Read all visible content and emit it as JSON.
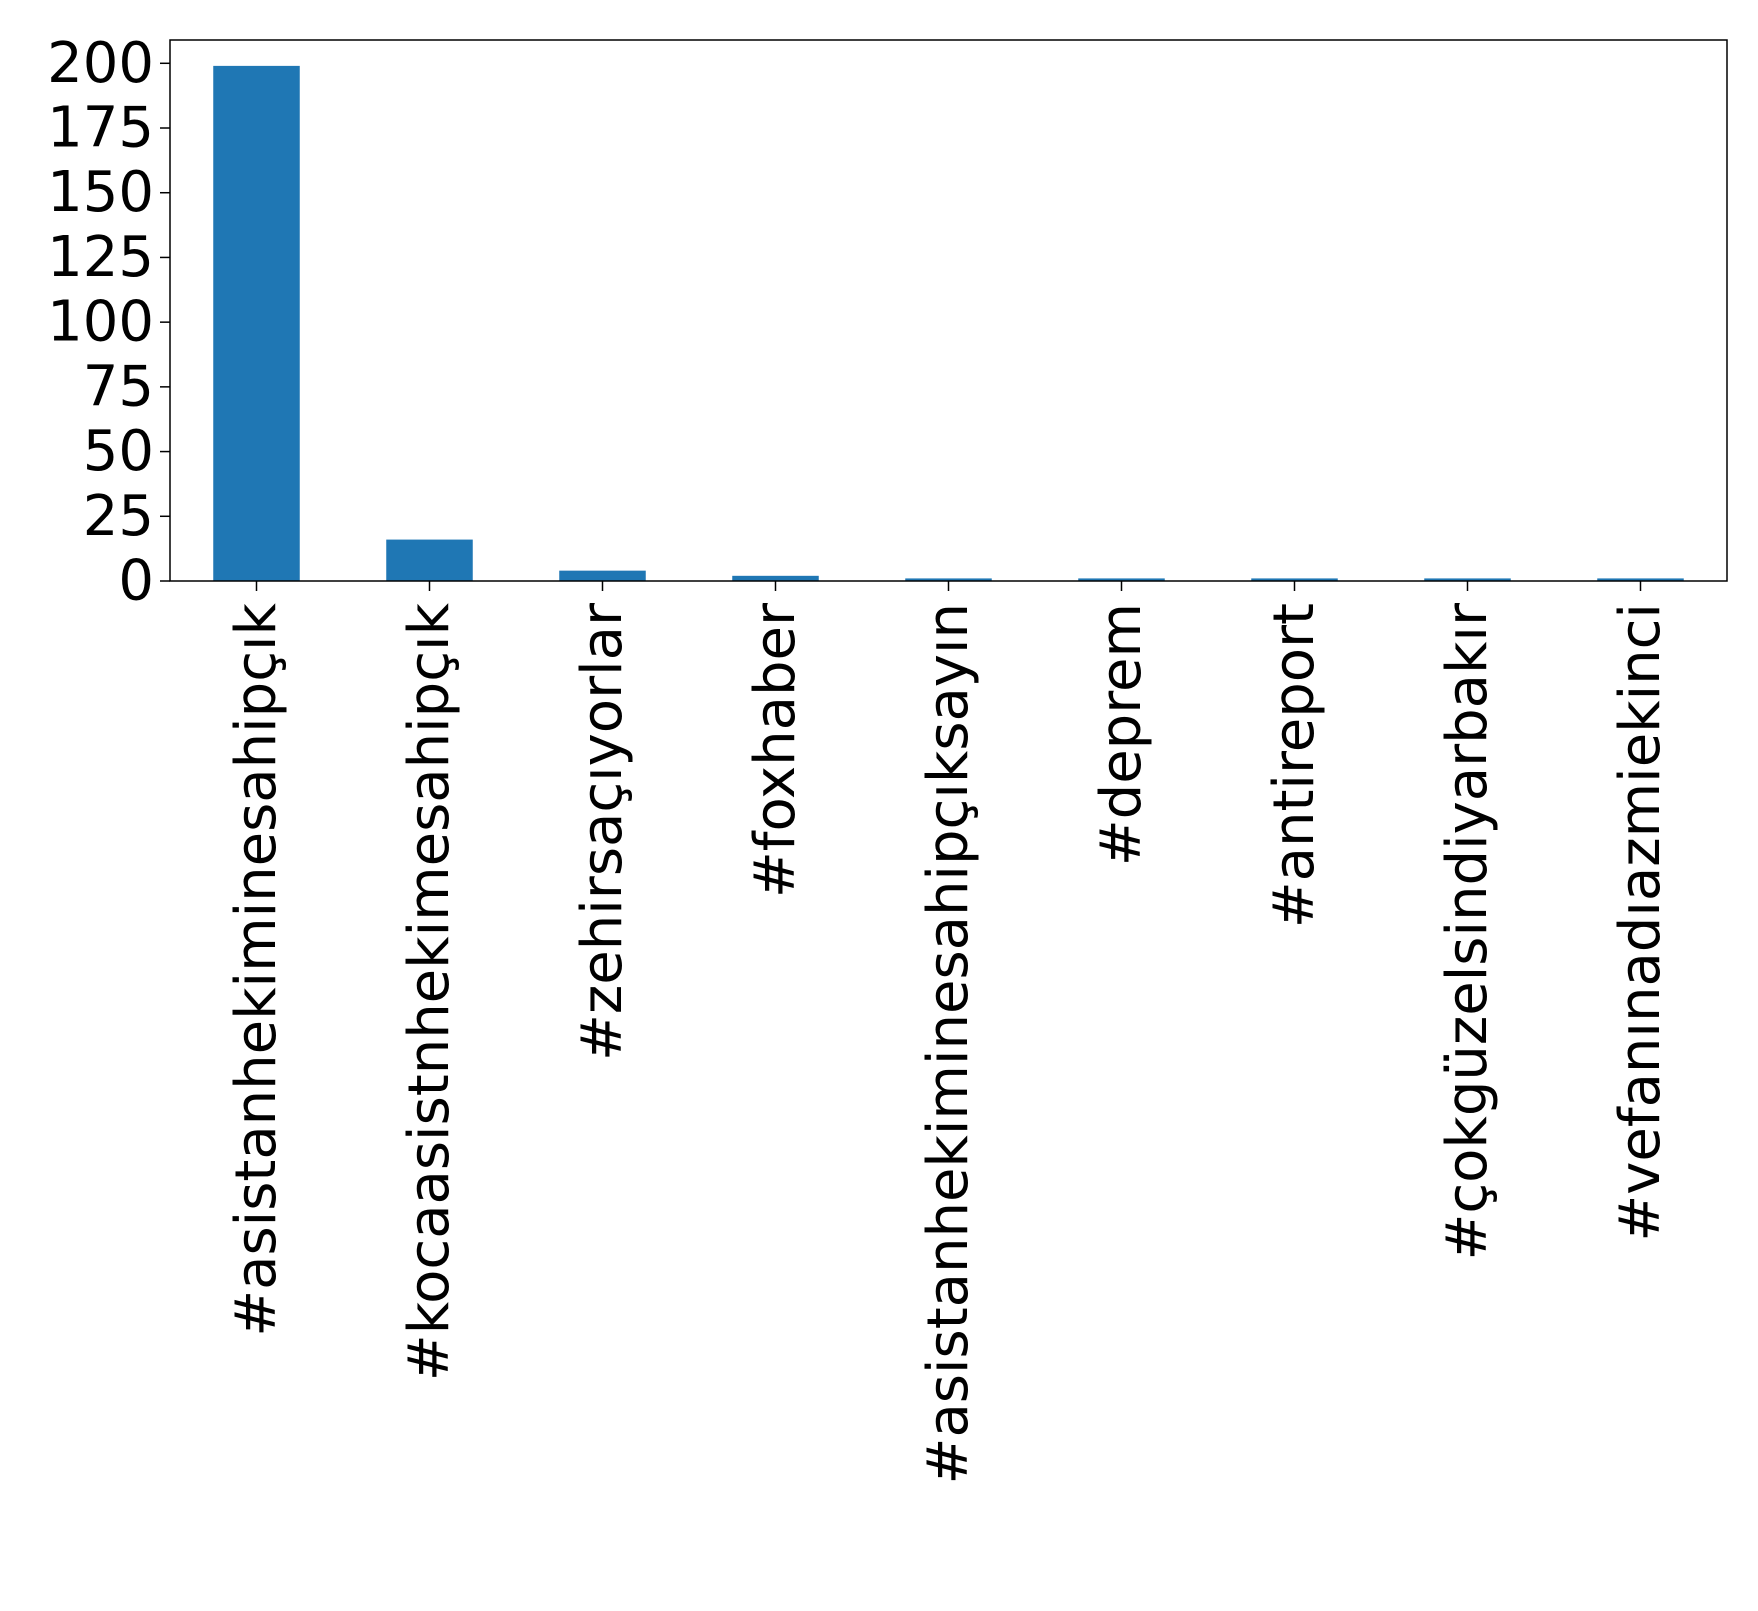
{
  "chart_data": {
    "type": "bar",
    "categories": [
      "#asistanhekiminesahipçık",
      "#kocaasistnhekimesahipçık",
      "#zehirsaçıyorlar",
      "#foxhaber",
      "#asistanhekiminesahipçıksayın",
      "#deprem",
      "#antireport",
      "#çokgüzelsindiyarbakır",
      "#vefanınadıazmiekinci"
    ],
    "values": [
      199,
      16,
      4,
      2,
      1,
      1,
      1,
      1,
      1
    ],
    "ylim": [
      0,
      209
    ],
    "yticks": [
      "0",
      "25",
      "50",
      "75",
      "100",
      "125",
      "150",
      "175",
      "200"
    ],
    "bar_color": "#1f77b4",
    "grid": false,
    "legend": "none"
  }
}
